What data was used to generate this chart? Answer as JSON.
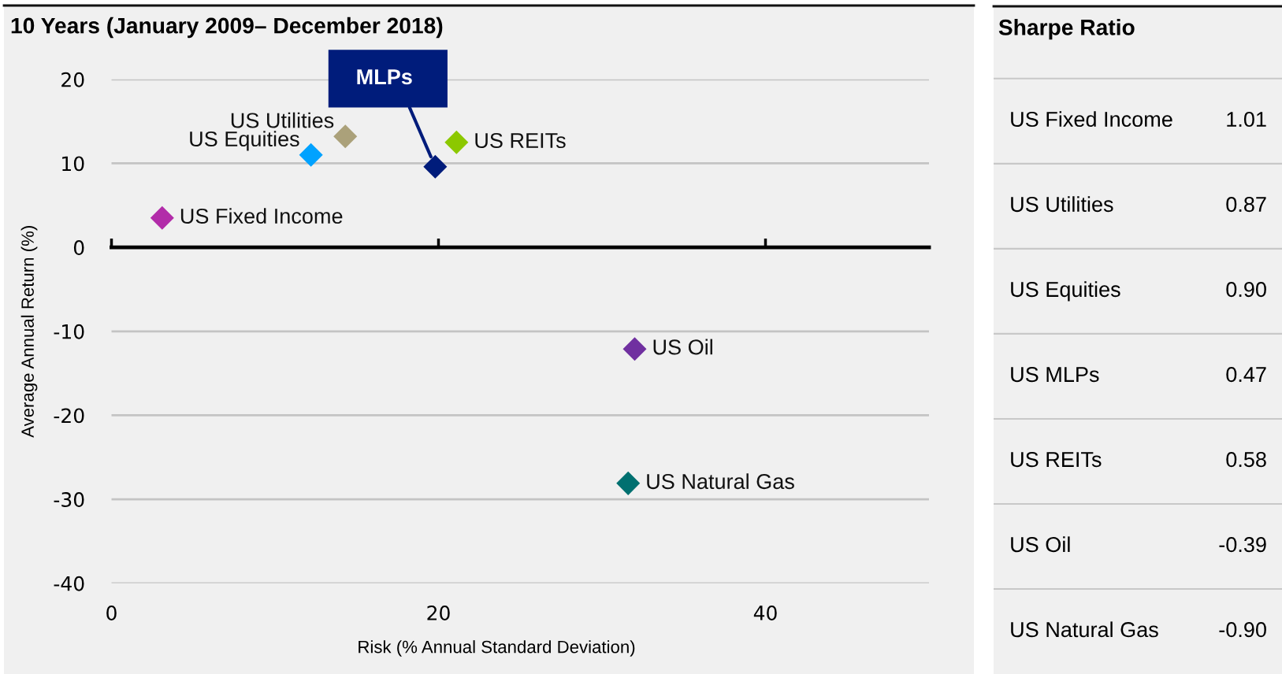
{
  "chart_data": [
    {
      "type": "scatter",
      "title": "10 Years (January 2009– December 2018)",
      "xlabel": "Risk (% Annual Standard Deviation)",
      "ylabel": "Average Annual Return (%)",
      "xlim": [
        0,
        50
      ],
      "ylim": [
        -40,
        20
      ],
      "xticks": [
        0,
        20,
        40
      ],
      "yticks": [
        -40,
        -30,
        -20,
        -10,
        0,
        10,
        20
      ],
      "grid": "y",
      "legend": false,
      "marker": "diamond",
      "series": [
        {
          "name": "US Fixed Income",
          "color": "#b22ca9",
          "x": [
            3.1
          ],
          "values": [
            3.5
          ]
        },
        {
          "name": "US Utilities",
          "color": "#aba17a",
          "x": [
            14.3
          ],
          "values": [
            13.2
          ]
        },
        {
          "name": "US Equities",
          "color": "#00a2ff",
          "x": [
            12.2
          ],
          "values": [
            11.0
          ]
        },
        {
          "name": "MLPs",
          "color": "#001c7b",
          "x": [
            19.8
          ],
          "values": [
            9.6
          ]
        },
        {
          "name": "US REITs",
          "color": "#8cc800",
          "x": [
            21.1
          ],
          "values": [
            12.5
          ]
        },
        {
          "name": "US Oil",
          "color": "#7030a0",
          "x": [
            32.0
          ],
          "values": [
            -12.1
          ]
        },
        {
          "name": "US Natural Gas",
          "color": "#007070",
          "x": [
            31.6
          ],
          "values": [
            -28.1
          ]
        }
      ]
    },
    {
      "type": "other",
      "title": "Sharpe Ratio",
      "categories": [
        "US Fixed Income",
        "US Utilities",
        "US Equities",
        "US MLPs",
        "US REITs",
        "US Oil",
        "US Natural Gas"
      ],
      "value_labels": [
        "1.01",
        "0.87",
        "0.90",
        "0.47",
        "0.58",
        "-0.39",
        "-0.90"
      ]
    }
  ]
}
